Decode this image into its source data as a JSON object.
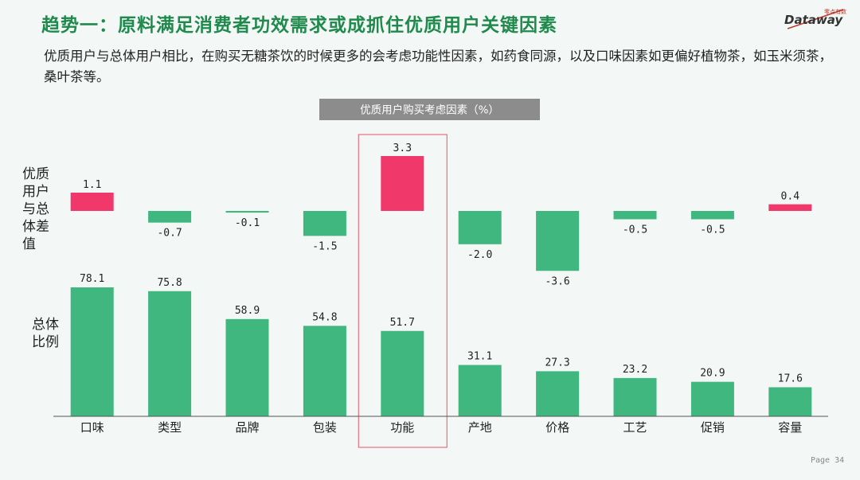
{
  "header": {
    "title": "趋势一：原料满足消费者功效需求或成抓住优质用户关键因素",
    "subtitle": "优质用户与总体用户相比，在购买无糖茶饮的时候更多的会考虑功能性因素，如药食同源，以及口味因素如更偏好植物茶，如玉米须茶，桑叶茶等。"
  },
  "logo": {
    "name": "Dataway",
    "tagline": "零点有数"
  },
  "footer": {
    "page_label": "Page 34"
  },
  "row_labels": {
    "top": "优质用户与总体差值",
    "bottom": "总体比例"
  },
  "colors": {
    "positive": "#f0386b",
    "negative": "#3fb77e",
    "overall": "#3fb77e",
    "banner": "#8c8c8c",
    "highlight": "#e8707f"
  },
  "chart_data": {
    "type": "bar",
    "title": "优质用户购买考虑因素（%）",
    "categories": [
      "口味",
      "类型",
      "品牌",
      "包装",
      "功能",
      "产地",
      "价格",
      "工艺",
      "促销",
      "容量"
    ],
    "highlight_category": "功能",
    "series": [
      {
        "name": "优质用户与总体差值",
        "values": [
          1.1,
          -0.7,
          -0.1,
          -1.5,
          3.3,
          -2.0,
          -3.6,
          -0.5,
          -0.5,
          0.4
        ],
        "labels": [
          "1.1",
          "-0.7",
          "-0.1",
          "-1.5",
          "3.3",
          "-2.0",
          "-3.6",
          "-0.5",
          "-0.5",
          "0.4"
        ]
      },
      {
        "name": "总体比例",
        "values": [
          78.1,
          75.8,
          58.9,
          54.8,
          51.7,
          31.1,
          27.3,
          23.2,
          20.9,
          17.6
        ],
        "labels": [
          "78.1",
          "75.8",
          "58.9",
          "54.8",
          "51.7",
          "31.1",
          "27.3",
          "23.2",
          "20.9",
          "17.6"
        ]
      }
    ]
  }
}
